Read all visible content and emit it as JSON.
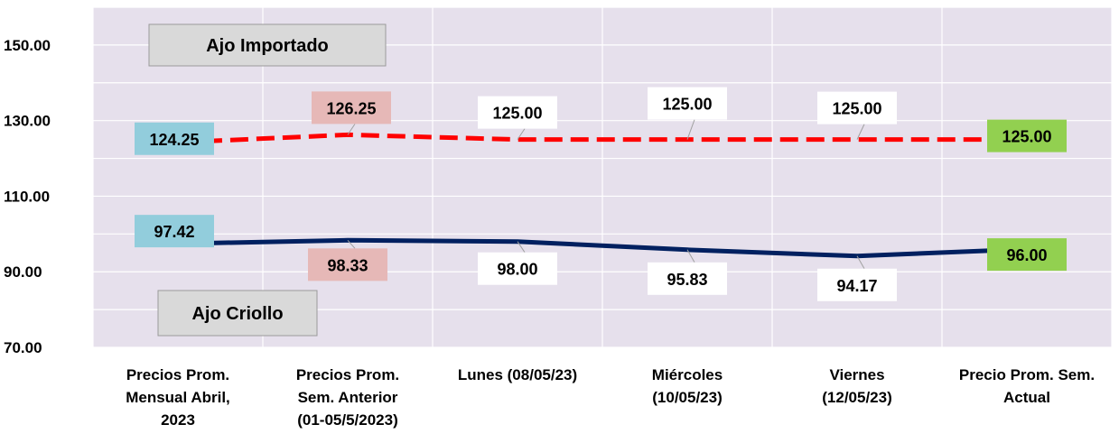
{
  "chart_data": {
    "type": "line",
    "categories": [
      [
        "Precios Prom.",
        "Mensual Abril,",
        "2023"
      ],
      [
        "Precios Prom.",
        "Sem. Anterior",
        "(01-05/5/2023)"
      ],
      [
        "Lunes  (08/05/23)"
      ],
      [
        "Miércoles",
        "(10/05/23)"
      ],
      [
        "Viernes",
        "(12/05/23)"
      ],
      [
        "Precio Prom. Sem.",
        "Actual"
      ]
    ],
    "yticks": [
      "70.00",
      "90.00",
      "110.00",
      "130.00",
      "150.00"
    ],
    "ylim": [
      70,
      160
    ],
    "grid": true,
    "series": [
      {
        "name": "Ajo Importado",
        "values": [
          124.25,
          126.25,
          125.0,
          125.0,
          125.0,
          125.0
        ],
        "labels": [
          "124.25",
          "126.25",
          "125.00",
          "125.00",
          "125.00",
          "125.00"
        ],
        "color": "#ff0000",
        "dashed": true
      },
      {
        "name": "Ajo Criollo",
        "values": [
          97.42,
          98.33,
          98.0,
          95.83,
          94.17,
          96.0
        ],
        "labels": [
          "97.42",
          "98.33",
          "98.00",
          "95.83",
          "94.17",
          "96.00"
        ],
        "color": "#002060",
        "dashed": false
      }
    ],
    "label_colors": [
      "#92cddc",
      "#e6b8b7",
      "#ffffff",
      "#ffffff",
      "#ffffff",
      "#92d050"
    ],
    "plot_background": "#e6e0ec",
    "series_box_color": "#d9d9d9"
  }
}
